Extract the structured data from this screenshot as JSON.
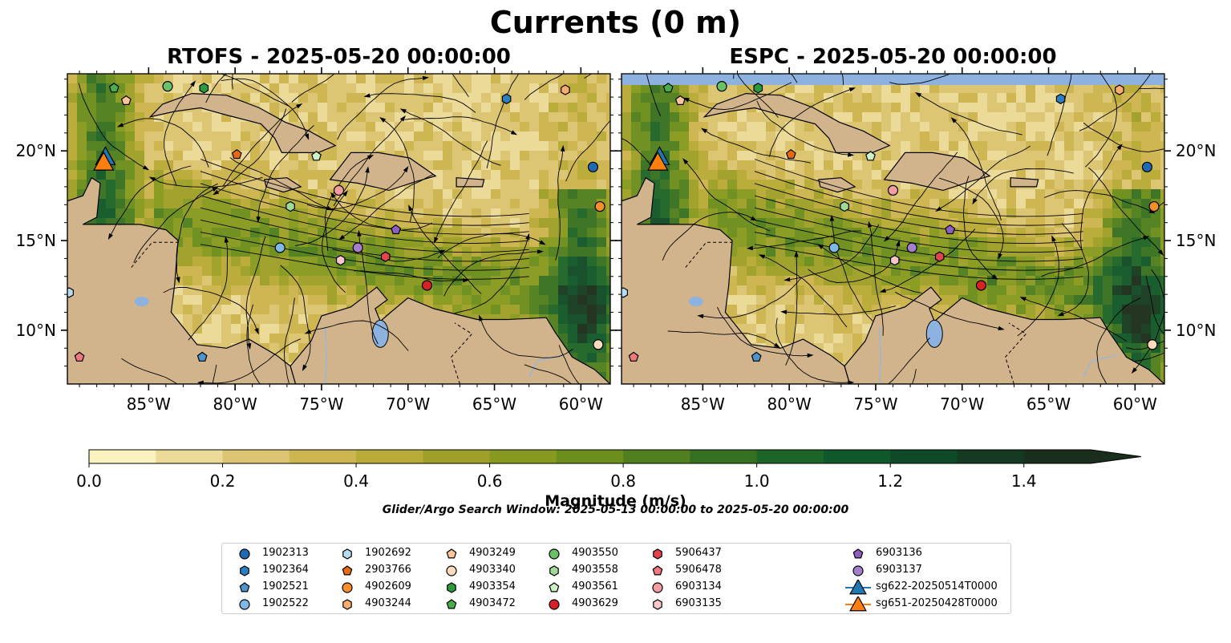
{
  "title": "Currents (0 m)",
  "chart_data": [
    {
      "type": "heatmap",
      "title": "RTOFS - 2025-05-20 00:00:00",
      "quantity": "surface current magnitude (m/s) with streamlines",
      "x_ticks": [
        "85°W",
        "80°W",
        "75°W",
        "70°W",
        "65°W",
        "60°W"
      ],
      "y_ticks": [
        "20°N",
        "15°N",
        "10°N"
      ],
      "xlim": [
        -89.7,
        -58.3
      ],
      "ylim": [
        7.0,
        24.3
      ]
    },
    {
      "type": "heatmap",
      "title": "ESPC - 2025-05-20 00:00:00",
      "quantity": "surface current magnitude (m/s) with streamlines",
      "x_ticks": [
        "85°W",
        "80°W",
        "75°W",
        "70°W",
        "65°W",
        "60°W"
      ],
      "y_ticks": [
        "20°N",
        "15°N",
        "10°N"
      ],
      "xlim": [
        -89.7,
        -58.3
      ],
      "ylim": [
        7.0,
        24.3
      ]
    }
  ],
  "colorbar": {
    "label": "Magnitude (m/s)",
    "range": [
      0.0,
      1.5
    ],
    "extend": "max",
    "ticks": [
      "0.0",
      "0.2",
      "0.4",
      "0.6",
      "0.8",
      "1.0",
      "1.2",
      "1.4"
    ],
    "colors": [
      "#faf3bf",
      "#ecdb98",
      "#dcc472",
      "#cdb550",
      "#b8ab37",
      "#9fa02a",
      "#879a1f",
      "#6b8e1d",
      "#4f7f1e",
      "#357022",
      "#1d6428",
      "#0f582a",
      "#0f4a28",
      "#143b22",
      "#1a2e1c"
    ]
  },
  "search_window": "Glider/Argo Search Window: 2025-05-13 00:00:00 to 2025-05-20 00:00:00",
  "floats": [
    {
      "id": "1902313",
      "marker": "circle",
      "color": "#1f69b4",
      "lon": -59.3,
      "lat": 19.1
    },
    {
      "id": "1902364",
      "marker": "hexagon",
      "color": "#2c7fc2",
      "lon": -64.3,
      "lat": 22.9
    },
    {
      "id": "1902521",
      "marker": "pentagon",
      "color": "#4d95d1",
      "lon": -81.9,
      "lat": 8.5
    },
    {
      "id": "1902522",
      "marker": "circle",
      "color": "#7fb8e6",
      "lon": -77.4,
      "lat": 14.6
    },
    {
      "id": "1902692",
      "marker": "hexagon",
      "color": "#b9dcf3",
      "lon": -89.6,
      "lat": 12.1
    },
    {
      "id": "2903766",
      "marker": "pentagon",
      "color": "#e86a0e",
      "lon": -79.9,
      "lat": 19.8
    },
    {
      "id": "4902609",
      "marker": "circle",
      "color": "#f68f2a",
      "lon": -58.9,
      "lat": 16.9
    },
    {
      "id": "4903244",
      "marker": "hexagon",
      "color": "#f9ad6c",
      "lon": -60.9,
      "lat": 23.4
    },
    {
      "id": "4903249",
      "marker": "pentagon",
      "color": "#fbc79a",
      "lon": -86.3,
      "lat": 22.8
    },
    {
      "id": "4903340",
      "marker": "circle",
      "color": "#fddcbd",
      "lon": -59.0,
      "lat": 9.2
    },
    {
      "id": "4903354",
      "marker": "hexagon",
      "color": "#2a9b3c",
      "lon": -81.8,
      "lat": 23.5
    },
    {
      "id": "4903472",
      "marker": "pentagon",
      "color": "#48ae4a",
      "lon": -87.0,
      "lat": 23.5
    },
    {
      "id": "4903550",
      "marker": "circle",
      "color": "#69c263",
      "lon": -83.9,
      "lat": 23.6
    },
    {
      "id": "4903558",
      "marker": "hexagon",
      "color": "#9fdb96",
      "lon": -76.8,
      "lat": 16.9
    },
    {
      "id": "4903561",
      "marker": "pentagon",
      "color": "#cdf2c5",
      "lon": -75.3,
      "lat": 19.7
    },
    {
      "id": "4903629",
      "marker": "circle",
      "color": "#d62226",
      "lon": -68.9,
      "lat": 12.5
    },
    {
      "id": "5906437",
      "marker": "hexagon",
      "color": "#e1444b",
      "lon": -71.3,
      "lat": 14.1
    },
    {
      "id": "5906478",
      "marker": "pentagon",
      "color": "#ef7880",
      "lon": -89.0,
      "lat": 8.5
    },
    {
      "id": "6903134",
      "marker": "circle",
      "color": "#f29d9f",
      "lon": -74.0,
      "lat": 17.8
    },
    {
      "id": "6903135",
      "marker": "hexagon",
      "color": "#f8c6cb",
      "lon": -73.9,
      "lat": 13.9
    },
    {
      "id": "6903136",
      "marker": "pentagon",
      "color": "#8d5fc0",
      "lon": -70.7,
      "lat": 15.6
    },
    {
      "id": "6903137",
      "marker": "circle",
      "color": "#a57fcc",
      "lon": -72.9,
      "lat": 14.6
    }
  ],
  "gliders": [
    {
      "id": "sg622-20250514T0000",
      "marker": "triangle",
      "color": "#1f77b4",
      "lon": -87.5,
      "lat": 19.6
    },
    {
      "id": "sg651-20250428T0000",
      "marker": "triangle",
      "color": "#ff7f0e",
      "lon": -87.6,
      "lat": 19.3
    }
  ],
  "map_colors": {
    "land": "#d2b48c",
    "water_body": "#8db2df",
    "stream": "#000000"
  }
}
